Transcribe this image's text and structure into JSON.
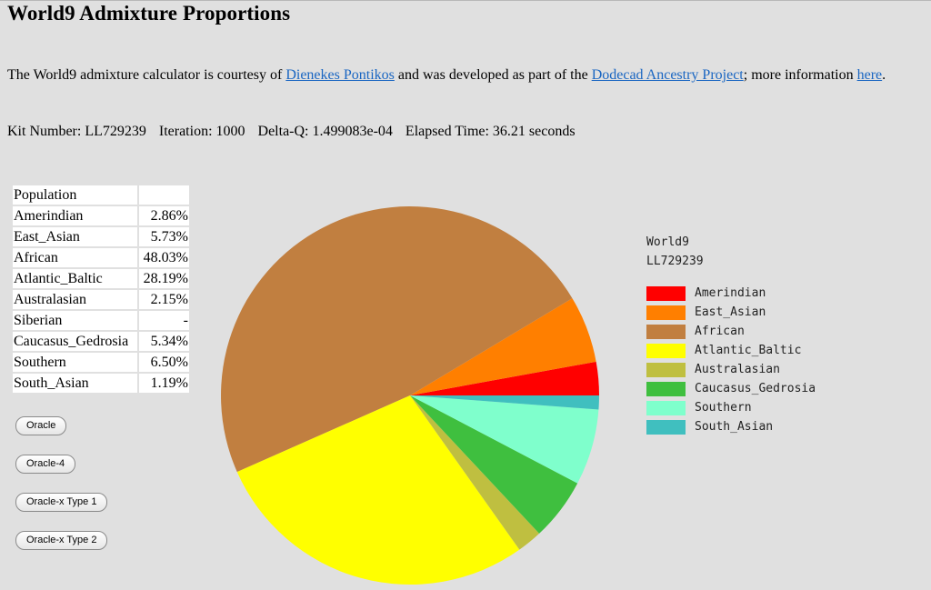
{
  "page": {
    "title": "World9 Admixture Proportions",
    "intro_before_link1": "The World9 admixture calculator is courtesy of ",
    "link1": "Dienekes Pontikos",
    "intro_between": " and was developed as part of the ",
    "link2": "Dodecad Ancestry Project",
    "intro_after_link2": "; more information ",
    "link3": "here",
    "intro_end": "."
  },
  "kit": {
    "kit_number": "Kit Number: LL729239",
    "iteration": "Iteration: 1000",
    "delta_q": "Delta-Q: 1.499083e-04",
    "elapsed": "Elapsed Time: 36.21 seconds"
  },
  "table": {
    "header": "Population",
    "rows": [
      {
        "name": "Amerindian",
        "value": "2.86%"
      },
      {
        "name": "East_Asian",
        "value": "5.73%"
      },
      {
        "name": "African",
        "value": "48.03%"
      },
      {
        "name": "Atlantic_Baltic",
        "value": "28.19%"
      },
      {
        "name": "Australasian",
        "value": "2.15%"
      },
      {
        "name": "Siberian",
        "value": "-"
      },
      {
        "name": "Caucasus_Gedrosia",
        "value": "5.34%"
      },
      {
        "name": "Southern",
        "value": "6.50%"
      },
      {
        "name": "South_Asian",
        "value": "1.19%"
      }
    ]
  },
  "buttons": [
    "Oracle",
    "Oracle-4",
    "Oracle-x Type 1",
    "Oracle-x Type 2"
  ],
  "chart_data": {
    "type": "pie",
    "legend_title": "World9",
    "legend_subtitle": "LL729239",
    "legend_placement": "right",
    "categories": [
      "Amerindian",
      "East_Asian",
      "African",
      "Atlantic_Baltic",
      "Australasian",
      "Caucasus_Gedrosia",
      "Southern",
      "South_Asian"
    ],
    "values": [
      2.86,
      5.73,
      48.03,
      28.19,
      2.15,
      5.34,
      6.5,
      1.19
    ],
    "colors": [
      "#ff0000",
      "#ff7f00",
      "#c17f40",
      "#ffff00",
      "#bfbf40",
      "#3fbf3f",
      "#7fffcc",
      "#40bfbf"
    ]
  }
}
